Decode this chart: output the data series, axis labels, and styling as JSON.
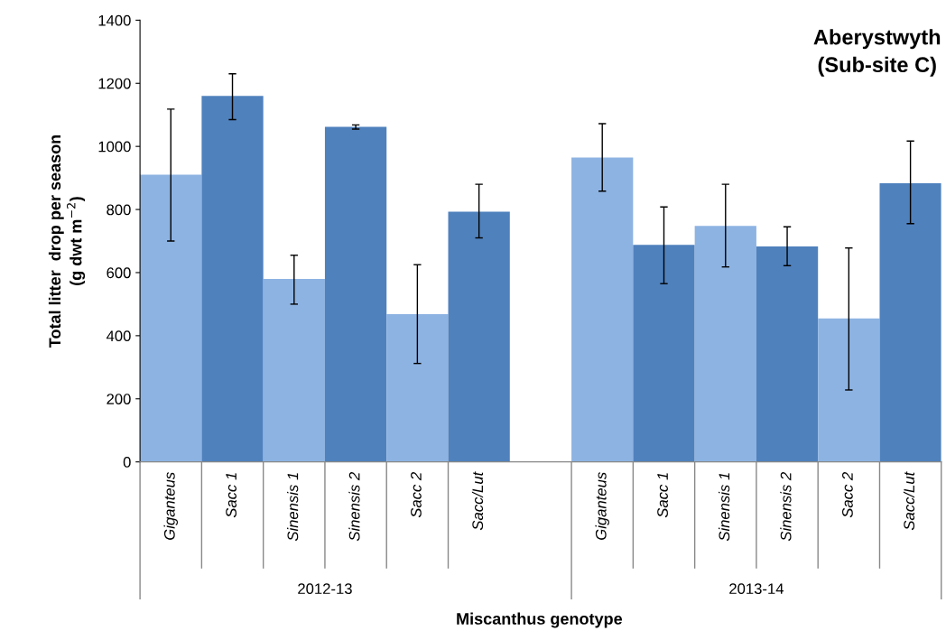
{
  "chart_data": {
    "type": "bar",
    "title": "Aberystwyth\n(Sub-site C)",
    "ylabel": "Total litter  drop per season\n(g dwt m$^{−2}$)",
    "xlabel": "Miscanthus genotype",
    "categories": [
      "Giganteus",
      "Sacc 1",
      "Sinensis 1",
      "Sinensis 2",
      "Sacc 2",
      "Sacc/Lut",
      null,
      "Giganteus",
      "Sacc 1",
      "Sinensis 1",
      "Sinensis 2",
      "Sacc 2",
      "Sacc/Lut"
    ],
    "values": [
      910,
      1160,
      580,
      1062,
      468,
      793,
      null,
      965,
      688,
      748,
      683,
      455,
      883
    ],
    "errors": [
      [
        700,
        1118
      ],
      [
        1085,
        1230
      ],
      [
        500,
        655
      ],
      [
        1055,
        1068
      ],
      [
        312,
        625
      ],
      [
        710,
        880
      ],
      null,
      [
        858,
        1072
      ],
      [
        565,
        808
      ],
      [
        618,
        880
      ],
      [
        622,
        745
      ],
      [
        228,
        678
      ],
      [
        755,
        1017
      ]
    ],
    "colors": [
      "#8db3e2",
      "#4f81bd",
      "#8db3e2",
      "#4f81bd",
      "#8db3e2",
      "#4f81bd",
      "#8db3e2",
      "#8db3e2",
      "#4f81bd",
      "#8db3e2",
      "#4f81bd",
      "#8db3e2",
      "#4f81bd"
    ],
    "annotations": [
      "2012-13",
      "2013-14"
    ],
    "ylim": [
      0,
      1400
    ],
    "yticks": [
      0,
      200,
      400,
      600,
      800,
      1000,
      1200,
      1400
    ],
    "grid": false,
    "legend": false
  }
}
